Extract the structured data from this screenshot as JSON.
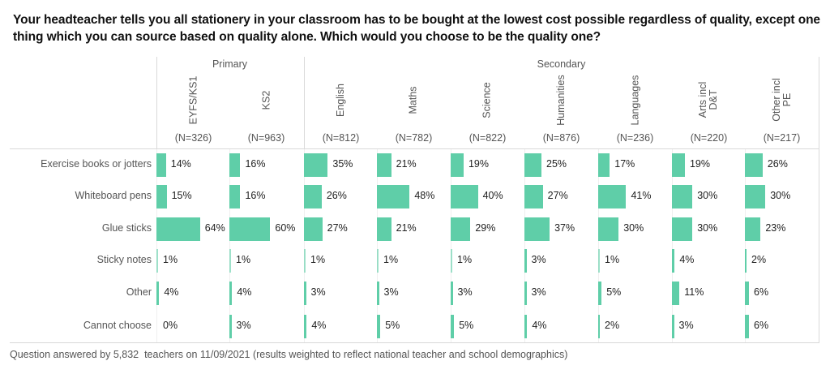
{
  "chart_data": {
    "type": "bar",
    "orientation": "horizontal",
    "title": "Your headteacher tells you all stationery in your classroom has to be bought at the lowest cost possible regardless of quality, except one thing which you can source based on quality alone. Which would you choose to be the quality one?",
    "groups": [
      {
        "name": "Primary",
        "columns": [
          0,
          1
        ]
      },
      {
        "name": "Secondary",
        "columns": [
          2,
          3,
          4,
          5,
          6,
          7,
          8
        ]
      }
    ],
    "columns": [
      {
        "label": "EYFS/KS1",
        "n": "(N=326)"
      },
      {
        "label": "KS2",
        "n": "(N=963)"
      },
      {
        "label": "English",
        "n": "(N=812)"
      },
      {
        "label": "Maths",
        "n": "(N=782)"
      },
      {
        "label": "Science",
        "n": "(N=822)"
      },
      {
        "label": "Humanities",
        "n": "(N=876)"
      },
      {
        "label": "Languages",
        "n": "(N=236)"
      },
      {
        "label": "Arts incl\nD&T",
        "n": "(N=220)"
      },
      {
        "label": "Other incl\nPE",
        "n": "(N=217)"
      }
    ],
    "categories": [
      "Exercise books or jotters",
      "Whiteboard pens",
      "Glue sticks",
      "Sticky notes",
      "Other",
      "Cannot choose"
    ],
    "series": [
      {
        "name": "EYFS/KS1",
        "values": [
          14,
          15,
          64,
          1,
          4,
          0
        ]
      },
      {
        "name": "KS2",
        "values": [
          16,
          16,
          60,
          1,
          4,
          3
        ]
      },
      {
        "name": "English",
        "values": [
          35,
          26,
          27,
          1,
          3,
          4
        ]
      },
      {
        "name": "Maths",
        "values": [
          21,
          48,
          21,
          1,
          3,
          5
        ]
      },
      {
        "name": "Science",
        "values": [
          19,
          40,
          29,
          1,
          3,
          5
        ]
      },
      {
        "name": "Humanities",
        "values": [
          25,
          27,
          37,
          3,
          3,
          4
        ]
      },
      {
        "name": "Languages",
        "values": [
          17,
          41,
          30,
          1,
          5,
          2
        ]
      },
      {
        "name": "Arts incl D&T",
        "values": [
          19,
          30,
          30,
          4,
          11,
          3
        ]
      },
      {
        "name": "Other incl PE",
        "values": [
          26,
          30,
          23,
          2,
          6,
          6
        ]
      }
    ],
    "value_suffix": "%",
    "xlim": [
      0,
      100
    ],
    "bar_color": "#5fcea8",
    "footer": "Question answered by 5,832  teachers on 11/09/2021 (results weighted to reflect national teacher and school demographics)"
  }
}
